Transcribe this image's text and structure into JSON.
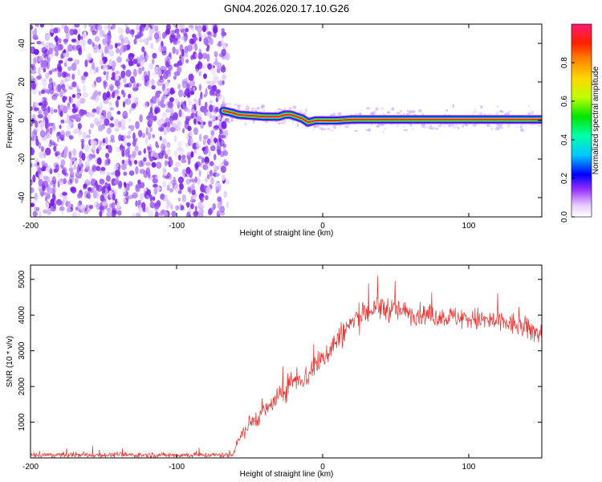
{
  "title": "GN04.2026.020.17.10.G26",
  "colors": {
    "snr_line": "#e8322f",
    "scatter_purple": "#7a1fe6",
    "axis": "#000000",
    "background": "#ffffff"
  },
  "chart_data": [
    {
      "type": "heatmap",
      "name": "spectrogram",
      "xlabel": "Height of straight line (km)",
      "ylabel": "Frequency (Hz)",
      "xlim": [
        -200,
        150
      ],
      "ylim": [
        -50,
        50
      ],
      "x_ticks": [
        "-200",
        "-100",
        "0",
        "100"
      ],
      "x_tick_values": [
        -200,
        -100,
        0,
        100
      ],
      "y_ticks": [
        "-40",
        "-20",
        "0",
        "20",
        "40"
      ],
      "y_tick_values": [
        -40,
        -20,
        0,
        20,
        40
      ],
      "noise_region_x": [
        -200,
        -65
      ],
      "signal_track": {
        "x": [
          -68,
          -62,
          -58,
          -40,
          -30,
          -26,
          -22,
          -18,
          -14,
          -10,
          -5,
          0,
          10,
          20,
          40,
          60,
          80,
          100,
          120,
          140,
          150
        ],
        "y": [
          5,
          4,
          3,
          2,
          2,
          3,
          3,
          2,
          1,
          -1,
          0,
          0,
          0,
          0.5,
          0.5,
          0.5,
          0.5,
          0.5,
          0.5,
          0.5,
          0.5
        ]
      },
      "colorbar": {
        "label": "Normalized spectral amplitude",
        "range": [
          0,
          1
        ],
        "ticks": [
          "0.0",
          "0.2",
          "0.4",
          "0.6",
          "0.8"
        ],
        "tick_values": [
          0,
          0.2,
          0.4,
          0.6,
          0.8
        ]
      }
    },
    {
      "type": "line",
      "name": "snr",
      "xlabel": "Height of straight line (km)",
      "ylabel": "SNR (10 * v/v)",
      "xlim": [
        -200,
        150
      ],
      "ylim": [
        0,
        5400
      ],
      "x_ticks": [
        "-200",
        "-100",
        "0",
        "100"
      ],
      "x_tick_values": [
        -200,
        -100,
        0,
        100
      ],
      "y_ticks": [
        "1000",
        "2000",
        "3000",
        "4000",
        "5000"
      ],
      "y_tick_values": [
        1000,
        2000,
        3000,
        4000,
        5000
      ],
      "series": [
        {
          "name": "SNR",
          "x": [
            -200,
            -150,
            -100,
            -62,
            -58,
            -50,
            -40,
            -30,
            -22,
            -18,
            -12,
            -5,
            0,
            10,
            20,
            30,
            40,
            50,
            60,
            70,
            80,
            90,
            100,
            110,
            120,
            130,
            140,
            150
          ],
          "values": [
            80,
            80,
            80,
            80,
            500,
            950,
            1300,
            1700,
            2100,
            2300,
            2200,
            2600,
            2800,
            3300,
            3800,
            4100,
            4200,
            4150,
            4050,
            4000,
            3950,
            3950,
            3900,
            3850,
            3800,
            3750,
            3600,
            3500
          ],
          "noise_amplitude": [
            90,
            90,
            90,
            90,
            250,
            300,
            300,
            350,
            400,
            450,
            450,
            450,
            450,
            450,
            450,
            450,
            450,
            400,
            350,
            350,
            350,
            350,
            400,
            400,
            400,
            400,
            400,
            400
          ]
        }
      ]
    }
  ]
}
